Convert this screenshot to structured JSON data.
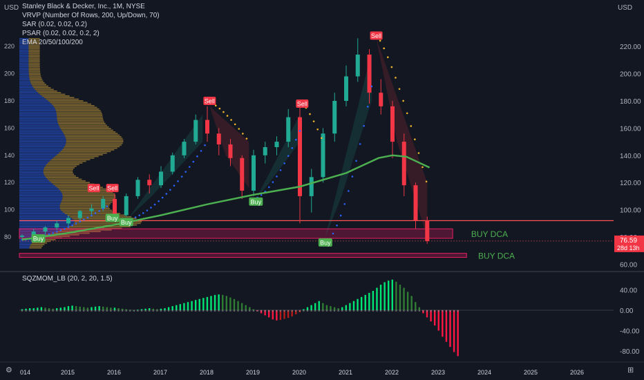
{
  "legend": {
    "title": "Stanley Black & Decker, Inc., 1M, NYSE",
    "vrvp": "VRVP (Number Of Rows, 200, Up/Down, 70)",
    "sar": "SAR (0.02, 0.02, 0.2)",
    "psar": "PSAR (0.02, 0.02, 0.2, 2)",
    "ema": "EMA 20/50/100/200",
    "sqz": "SQZMOM_LB (20, 2, 20, 1.5)"
  },
  "corner": {
    "currency_left": "USD",
    "currency_right": "USD",
    "tz_icon": "settings-icon"
  },
  "price_badge": {
    "value": "76.59",
    "countdown": "28d 13h",
    "color": "#f23645"
  },
  "colors": {
    "up": "#22ab94",
    "down": "#f23645",
    "ema": "#4caf50",
    "zone": "#e91e63",
    "line": "#ff5252",
    "squeeze_up": "#26a69a",
    "squeeze_down": "#d32f2f"
  },
  "chart_data": [
    {
      "type": "candlestick",
      "title": "Stanley Black & Decker, Inc., 1M, NYSE",
      "y_axis_right": {
        "ticks": [
          "220.00",
          "200.00",
          "180.00",
          "160.00",
          "140.00",
          "120.00",
          "100.00",
          "80.00",
          "60.00"
        ],
        "range": [
          62,
          230
        ]
      },
      "y_axis_left": {
        "ticks": [
          "220",
          "200",
          "180",
          "160",
          "140",
          "120",
          "100",
          "80"
        ]
      },
      "x_axis": {
        "ticks": [
          "014",
          "2015",
          "2016",
          "2017",
          "2018",
          "2019",
          "2020",
          "2021",
          "2022",
          "2023",
          "2024",
          "2025",
          "2026"
        ]
      },
      "series": [
        {
          "name": "SAR",
          "type": "dots"
        },
        {
          "name": "EMA 20/50/100/200",
          "type": "line",
          "points": [
            [
              2014.0,
              78
            ],
            [
              2015.0,
              83
            ],
            [
              2016.0,
              89
            ],
            [
              2017.0,
              96
            ],
            [
              2018.0,
              104
            ],
            [
              2019.0,
              111
            ],
            [
              2020.0,
              117
            ],
            [
              2021.0,
              127
            ],
            [
              2021.7,
              138
            ],
            [
              2022.0,
              140
            ],
            [
              2022.3,
              139
            ],
            [
              2022.8,
              131
            ]
          ]
        }
      ],
      "candles": [
        [
          2014.0,
          80,
          82,
          78,
          81
        ],
        [
          2014.25,
          81,
          86,
          79,
          84
        ],
        [
          2014.5,
          84,
          88,
          82,
          87
        ],
        [
          2014.75,
          87,
          92,
          85,
          90
        ],
        [
          2015.0,
          90,
          96,
          88,
          94
        ],
        [
          2015.25,
          94,
          100,
          92,
          99
        ],
        [
          2015.5,
          99,
          104,
          96,
          101
        ],
        [
          2015.75,
          101,
          110,
          99,
          108
        ],
        [
          2016.0,
          108,
          112,
          92,
          96
        ],
        [
          2016.25,
          96,
          112,
          95,
          110
        ],
        [
          2016.5,
          110,
          124,
          108,
          122
        ],
        [
          2016.75,
          122,
          126,
          112,
          118
        ],
        [
          2017.0,
          118,
          132,
          116,
          128
        ],
        [
          2017.25,
          128,
          142,
          126,
          140
        ],
        [
          2017.5,
          140,
          152,
          138,
          150
        ],
        [
          2017.75,
          150,
          170,
          148,
          166
        ],
        [
          2018.0,
          166,
          176,
          150,
          156
        ],
        [
          2018.25,
          156,
          160,
          140,
          148
        ],
        [
          2018.5,
          148,
          152,
          132,
          138
        ],
        [
          2018.75,
          138,
          140,
          108,
          114
        ],
        [
          2019.0,
          114,
          144,
          110,
          140
        ],
        [
          2019.25,
          140,
          150,
          134,
          146
        ],
        [
          2019.5,
          146,
          154,
          140,
          150
        ],
        [
          2019.75,
          150,
          174,
          146,
          168
        ],
        [
          2020.0,
          168,
          178,
          90,
          110
        ],
        [
          2020.25,
          110,
          130,
          98,
          124
        ],
        [
          2020.5,
          124,
          160,
          120,
          156
        ],
        [
          2020.75,
          156,
          186,
          150,
          180
        ],
        [
          2021.0,
          180,
          206,
          176,
          198
        ],
        [
          2021.25,
          198,
          226,
          194,
          214
        ],
        [
          2021.5,
          214,
          218,
          178,
          186
        ],
        [
          2021.75,
          186,
          196,
          170,
          176
        ],
        [
          2022.0,
          176,
          180,
          138,
          150
        ],
        [
          2022.25,
          150,
          156,
          110,
          118
        ],
        [
          2022.5,
          118,
          120,
          86,
          92
        ],
        [
          2022.75,
          92,
          95,
          75,
          77
        ]
      ],
      "signals": [
        {
          "label": "Buy",
          "x": 2014.35,
          "y": 79
        },
        {
          "label": "Sell",
          "x": 2015.55,
          "y": 116
        },
        {
          "label": "Sell",
          "x": 2015.95,
          "y": 116
        },
        {
          "label": "Buy",
          "x": 2015.95,
          "y": 94
        },
        {
          "label": "Buy",
          "x": 2016.25,
          "y": 91
        },
        {
          "label": "Sell",
          "x": 2018.05,
          "y": 180
        },
        {
          "label": "Buy",
          "x": 2019.05,
          "y": 106
        },
        {
          "label": "Sell",
          "x": 2020.05,
          "y": 178
        },
        {
          "label": "Buy",
          "x": 2020.55,
          "y": 76
        },
        {
          "label": "Sell",
          "x": 2021.65,
          "y": 228
        }
      ],
      "zones": [
        {
          "label": "BUY DCA",
          "y_top": 86,
          "y_bottom": 79
        },
        {
          "label": "BUY DCA",
          "y_top": 68,
          "y_bottom": 65
        }
      ],
      "horizontal_line": 92
    },
    {
      "type": "bar",
      "title": "SQZMOM_LB (20, 2, 20, 1.5)",
      "y_axis": {
        "ticks": [
          "40.00",
          "0.00",
          "-40.00",
          "-80.00"
        ],
        "range": [
          -95,
          60
        ]
      },
      "x_start": 2014.0,
      "x_step": 0.0833,
      "values": [
        2,
        3,
        4,
        4,
        5,
        6,
        5,
        4,
        3,
        4,
        5,
        6,
        8,
        9,
        8,
        7,
        6,
        5,
        6,
        7,
        8,
        7,
        6,
        5,
        5,
        4,
        3,
        2,
        1,
        0,
        1,
        2,
        3,
        4,
        3,
        2,
        3,
        4,
        6,
        8,
        10,
        12,
        14,
        16,
        18,
        20,
        22,
        24,
        26,
        28,
        30,
        31,
        30,
        28,
        25,
        22,
        18,
        14,
        10,
        6,
        2,
        -2,
        -6,
        -10,
        -14,
        -18,
        -20,
        -19,
        -17,
        -15,
        -12,
        -8,
        -4,
        2,
        6,
        10,
        14,
        18,
        14,
        10,
        8,
        6,
        4,
        6,
        10,
        14,
        18,
        22,
        26,
        30,
        34,
        38,
        44,
        50,
        55,
        58,
        60,
        56,
        50,
        44,
        36,
        28,
        16,
        6,
        -6,
        -14,
        -22,
        -30,
        -40,
        -52,
        -62,
        -72,
        -82,
        -90
      ]
    }
  ]
}
